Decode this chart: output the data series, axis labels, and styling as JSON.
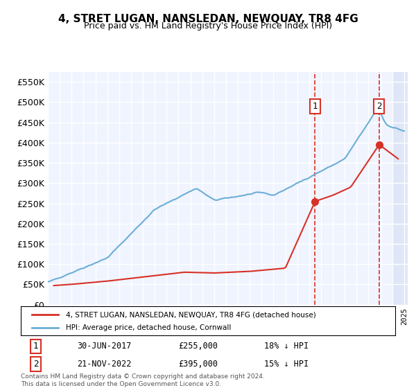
{
  "title": "4, STRET LUGAN, NANSLEDAN, NEWQUAY, TR8 4FG",
  "subtitle": "Price paid vs. HM Land Registry's House Price Index (HPI)",
  "xlabel": "",
  "ylabel": "",
  "ylim": [
    0,
    575000
  ],
  "yticks": [
    0,
    50000,
    100000,
    150000,
    200000,
    250000,
    300000,
    350000,
    400000,
    450000,
    500000,
    550000
  ],
  "ytick_labels": [
    "£0",
    "£50K",
    "£100K",
    "£150K",
    "£200K",
    "£250K",
    "£300K",
    "£350K",
    "£400K",
    "£450K",
    "£500K",
    "£550K"
  ],
  "hpi_color": "#6baed6",
  "price_color": "#d73027",
  "annotation1_date": "30-JUN-2017",
  "annotation1_price": 255000,
  "annotation1_text": "18% ↓ HPI",
  "annotation2_date": "21-NOV-2022",
  "annotation2_price": 395000,
  "annotation2_text": "15% ↓ HPI",
  "legend_label1": "4, STRET LUGAN, NANSLEDAN, NEWQUAY, TR8 4FG (detached house)",
  "legend_label2": "HPI: Average price, detached house, Cornwall",
  "footer": "Contains HM Land Registry data © Crown copyright and database right 2024.\nThis data is licensed under the Open Government Licence v3.0.",
  "background_color": "#ffffff",
  "plot_bg_color": "#f0f4ff",
  "grid_color": "#ffffff",
  "shade_color": "#d0daf0"
}
